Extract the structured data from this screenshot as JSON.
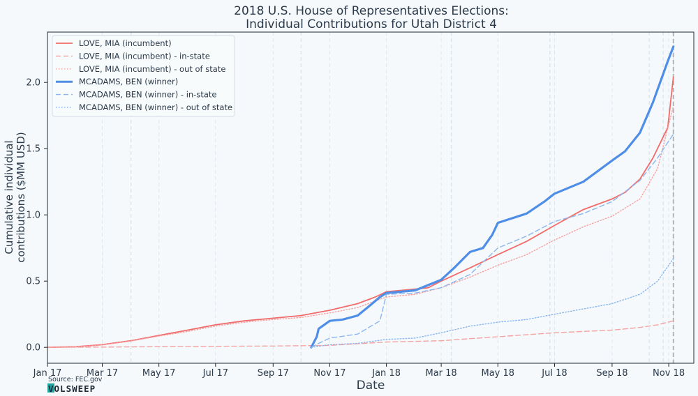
{
  "chart_data": {
    "type": "line",
    "title": "2018 U.S. House of Representatives Elections:",
    "subtitle": "Individual Contributions for Utah District 4",
    "xlabel": "Date",
    "ylabel_line1": "Cumulative individual",
    "ylabel_line2": "contributions ($MM USD)",
    "x_range": [
      "2017-01-01",
      "2018-11-28"
    ],
    "ylim": [
      -0.12,
      2.38
    ],
    "x_ticks": [
      {
        "date": "2017-01-01",
        "label": "Jan 17"
      },
      {
        "date": "2017-03-01",
        "label": "Mar 17"
      },
      {
        "date": "2017-05-01",
        "label": "May 17"
      },
      {
        "date": "2017-07-01",
        "label": "Jul 17"
      },
      {
        "date": "2017-09-01",
        "label": "Sep 17"
      },
      {
        "date": "2017-11-01",
        "label": "Nov 17"
      },
      {
        "date": "2018-01-01",
        "label": "Jan 18"
      },
      {
        "date": "2018-03-01",
        "label": "Mar 18"
      },
      {
        "date": "2018-05-01",
        "label": "May 18"
      },
      {
        "date": "2018-07-01",
        "label": "Jul 18"
      },
      {
        "date": "2018-09-01",
        "label": "Sep 18"
      },
      {
        "date": "2018-11-01",
        "label": "Nov 18"
      }
    ],
    "y_ticks": [
      {
        "value": 0.0,
        "label": "0.0"
      },
      {
        "value": 0.5,
        "label": "0.5"
      },
      {
        "value": 1.0,
        "label": "1.0"
      },
      {
        "value": 1.5,
        "label": "1.5"
      },
      {
        "value": 2.0,
        "label": "2.0"
      }
    ],
    "reference_lines": [
      "2017-04-01",
      "2017-10-01",
      "2018-03-12",
      "2018-06-26",
      "2018-10-11",
      "2018-10-26",
      "2018-11-06"
    ],
    "election_day": "2018-11-06",
    "grid": true,
    "legend_position": "top-left",
    "series": [
      {
        "name": "LOVE, MIA (incumbent)",
        "color": "#f26b6b",
        "style": "solid",
        "width": 1.8,
        "opacity": 1,
        "points": [
          [
            "2017-01-01",
            0
          ],
          [
            "2017-02-01",
            0.005
          ],
          [
            "2017-03-01",
            0.02
          ],
          [
            "2017-04-01",
            0.05
          ],
          [
            "2017-05-01",
            0.09
          ],
          [
            "2017-06-01",
            0.13
          ],
          [
            "2017-07-01",
            0.17
          ],
          [
            "2017-08-01",
            0.2
          ],
          [
            "2017-09-01",
            0.22
          ],
          [
            "2017-10-01",
            0.24
          ],
          [
            "2017-11-01",
            0.28
          ],
          [
            "2017-12-01",
            0.33
          ],
          [
            "2017-12-20",
            0.38
          ],
          [
            "2018-01-01",
            0.42
          ],
          [
            "2018-02-01",
            0.44
          ],
          [
            "2018-02-15",
            0.45
          ],
          [
            "2018-03-01",
            0.5
          ],
          [
            "2018-04-01",
            0.6
          ],
          [
            "2018-05-01",
            0.7
          ],
          [
            "2018-06-01",
            0.8
          ],
          [
            "2018-07-01",
            0.92
          ],
          [
            "2018-08-01",
            1.04
          ],
          [
            "2018-09-01",
            1.12
          ],
          [
            "2018-09-15",
            1.17
          ],
          [
            "2018-10-01",
            1.27
          ],
          [
            "2018-10-15",
            1.43
          ],
          [
            "2018-10-31",
            1.66
          ],
          [
            "2018-11-06",
            2.04
          ]
        ]
      },
      {
        "name": "LOVE, MIA (incumbent) - in-state",
        "color": "#f4a3a3",
        "style": "dashed",
        "width": 1.4,
        "opacity": 1,
        "points": [
          [
            "2017-01-01",
            0
          ],
          [
            "2017-03-01",
            0.002
          ],
          [
            "2017-05-01",
            0.005
          ],
          [
            "2017-07-01",
            0.008
          ],
          [
            "2017-09-01",
            0.01
          ],
          [
            "2017-11-01",
            0.015
          ],
          [
            "2018-01-01",
            0.04
          ],
          [
            "2018-03-01",
            0.05
          ],
          [
            "2018-05-01",
            0.08
          ],
          [
            "2018-07-01",
            0.11
          ],
          [
            "2018-09-01",
            0.13
          ],
          [
            "2018-10-01",
            0.15
          ],
          [
            "2018-10-20",
            0.17
          ],
          [
            "2018-11-06",
            0.2
          ]
        ]
      },
      {
        "name": "LOVE, MIA (incumbent) - out of state",
        "color": "#f4a3a3",
        "style": "dotted",
        "width": 1.4,
        "opacity": 1,
        "points": [
          [
            "2017-01-01",
            0
          ],
          [
            "2017-02-01",
            0.004
          ],
          [
            "2017-03-01",
            0.018
          ],
          [
            "2017-04-01",
            0.048
          ],
          [
            "2017-05-01",
            0.085
          ],
          [
            "2017-06-01",
            0.12
          ],
          [
            "2017-07-01",
            0.16
          ],
          [
            "2017-08-01",
            0.19
          ],
          [
            "2017-09-01",
            0.21
          ],
          [
            "2017-10-01",
            0.225
          ],
          [
            "2017-11-01",
            0.26
          ],
          [
            "2017-12-01",
            0.3
          ],
          [
            "2017-12-20",
            0.35
          ],
          [
            "2018-01-01",
            0.38
          ],
          [
            "2018-02-01",
            0.4
          ],
          [
            "2018-03-01",
            0.45
          ],
          [
            "2018-04-01",
            0.53
          ],
          [
            "2018-05-01",
            0.62
          ],
          [
            "2018-06-01",
            0.7
          ],
          [
            "2018-07-01",
            0.81
          ],
          [
            "2018-08-01",
            0.91
          ],
          [
            "2018-09-01",
            0.99
          ],
          [
            "2018-10-01",
            1.12
          ],
          [
            "2018-10-20",
            1.35
          ],
          [
            "2018-11-06",
            1.82
          ]
        ]
      },
      {
        "name": "MCADAMS, BEN (winner)",
        "color": "#4f8ee6",
        "style": "solid",
        "width": 3.2,
        "opacity": 1,
        "points": [
          [
            "2017-10-12",
            0
          ],
          [
            "2017-10-18",
            0.08
          ],
          [
            "2017-10-20",
            0.14
          ],
          [
            "2017-11-01",
            0.2
          ],
          [
            "2017-11-15",
            0.21
          ],
          [
            "2017-12-01",
            0.24
          ],
          [
            "2017-12-15",
            0.32
          ],
          [
            "2017-12-25",
            0.38
          ],
          [
            "2018-01-01",
            0.41
          ],
          [
            "2018-02-01",
            0.43
          ],
          [
            "2018-02-15",
            0.47
          ],
          [
            "2018-03-01",
            0.51
          ],
          [
            "2018-03-15",
            0.6
          ],
          [
            "2018-04-01",
            0.72
          ],
          [
            "2018-04-15",
            0.75
          ],
          [
            "2018-04-25",
            0.85
          ],
          [
            "2018-05-01",
            0.94
          ],
          [
            "2018-06-01",
            1.01
          ],
          [
            "2018-06-20",
            1.1
          ],
          [
            "2018-07-01",
            1.16
          ],
          [
            "2018-08-01",
            1.25
          ],
          [
            "2018-09-01",
            1.41
          ],
          [
            "2018-09-15",
            1.48
          ],
          [
            "2018-10-01",
            1.62
          ],
          [
            "2018-10-15",
            1.85
          ],
          [
            "2018-10-31",
            2.16
          ],
          [
            "2018-11-06",
            2.27
          ]
        ]
      },
      {
        "name": "MCADAMS, BEN (winner) - in-state",
        "color": "#8bb6ee",
        "style": "dashed",
        "width": 1.4,
        "opacity": 1,
        "points": [
          [
            "2017-10-12",
            0
          ],
          [
            "2017-10-20",
            0.03
          ],
          [
            "2017-11-01",
            0.07
          ],
          [
            "2017-12-01",
            0.1
          ],
          [
            "2017-12-25",
            0.2
          ],
          [
            "2018-01-01",
            0.4
          ],
          [
            "2018-02-01",
            0.41
          ],
          [
            "2018-03-01",
            0.45
          ],
          [
            "2018-04-01",
            0.55
          ],
          [
            "2018-05-01",
            0.75
          ],
          [
            "2018-06-01",
            0.84
          ],
          [
            "2018-07-01",
            0.95
          ],
          [
            "2018-08-01",
            1.01
          ],
          [
            "2018-09-01",
            1.1
          ],
          [
            "2018-10-01",
            1.26
          ],
          [
            "2018-10-20",
            1.43
          ],
          [
            "2018-11-06",
            1.61
          ]
        ]
      },
      {
        "name": "MCADAMS, BEN (winner) - out of state",
        "color": "#8bb6ee",
        "style": "dotted",
        "width": 1.4,
        "opacity": 1,
        "points": [
          [
            "2017-10-12",
            0
          ],
          [
            "2017-11-01",
            0.02
          ],
          [
            "2017-12-01",
            0.03
          ],
          [
            "2018-01-01",
            0.06
          ],
          [
            "2018-02-01",
            0.07
          ],
          [
            "2018-03-01",
            0.11
          ],
          [
            "2018-04-01",
            0.16
          ],
          [
            "2018-05-01",
            0.19
          ],
          [
            "2018-06-01",
            0.21
          ],
          [
            "2018-07-01",
            0.25
          ],
          [
            "2018-08-01",
            0.29
          ],
          [
            "2018-09-01",
            0.33
          ],
          [
            "2018-10-01",
            0.4
          ],
          [
            "2018-10-20",
            0.5
          ],
          [
            "2018-11-06",
            0.67
          ]
        ]
      }
    ]
  },
  "footer": {
    "source": "Source: FEC.gov",
    "brand": "VOLSWEEP"
  },
  "colors": {
    "background": "#f5f9fb",
    "axis": "#1e2a35",
    "grid": "#dfe7ee",
    "election_line": "#b0b0b0",
    "brand_accent": "#1fa6a0"
  }
}
